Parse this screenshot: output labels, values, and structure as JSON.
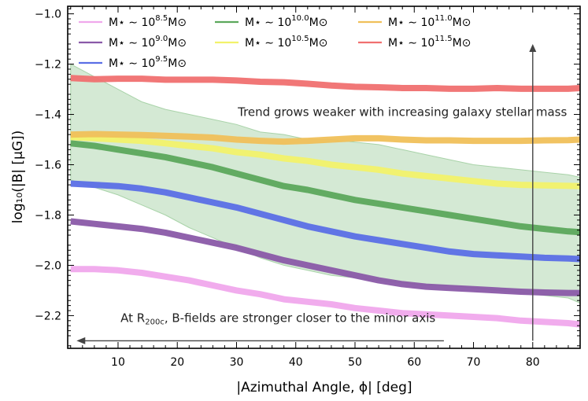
{
  "chart_data": {
    "type": "line",
    "xlabel": "|Azimuthal Angle, ϕ| [deg]",
    "ylabel": "log₁₀(|B| [μG])",
    "xlim": [
      1.5,
      88
    ],
    "ylim": [
      -2.33,
      -0.97
    ],
    "xticks": [
      10,
      20,
      30,
      40,
      50,
      60,
      70,
      80
    ],
    "xtick_labels": [
      "10",
      "20",
      "30",
      "40",
      "50",
      "60",
      "70",
      "80"
    ],
    "yticks": [
      -2.2,
      -2.0,
      -1.8,
      -1.6,
      -1.4,
      -1.2,
      -1.0
    ],
    "ytick_labels": [
      "−2.2",
      "−2.0",
      "−1.8",
      "−1.6",
      "−1.4",
      "−1.2",
      "−1.0"
    ],
    "x": [
      2,
      6,
      10,
      14,
      18,
      22,
      26,
      30,
      34,
      38,
      42,
      46,
      50,
      54,
      58,
      62,
      66,
      70,
      74,
      78,
      82,
      86,
      88
    ],
    "series": [
      {
        "name": "M⋆ ∼ 10^8.5 M⊙",
        "base": "M⋆ ∼ 10",
        "exp": "8.5",
        "tail": "M⊙",
        "color": "#f0a8ec",
        "values": [
          -2.015,
          -2.015,
          -2.02,
          -2.03,
          -2.045,
          -2.06,
          -2.08,
          -2.1,
          -2.115,
          -2.135,
          -2.145,
          -2.155,
          -2.17,
          -2.18,
          -2.19,
          -2.195,
          -2.2,
          -2.205,
          -2.21,
          -2.22,
          -2.225,
          -2.23,
          -2.235
        ]
      },
      {
        "name": "M⋆ ∼ 10^9.0 M⊙",
        "base": "M⋆ ∼ 10",
        "exp": "9.0",
        "tail": "M⊙",
        "color": "#8a5aa8",
        "values": [
          -1.825,
          -1.835,
          -1.845,
          -1.855,
          -1.87,
          -1.89,
          -1.91,
          -1.93,
          -1.955,
          -1.98,
          -2.0,
          -2.02,
          -2.04,
          -2.06,
          -2.075,
          -2.085,
          -2.09,
          -2.095,
          -2.1,
          -2.105,
          -2.108,
          -2.11,
          -2.11
        ]
      },
      {
        "name": "M⋆ ∼ 10^9.5 M⊙",
        "base": "M⋆ ∼ 10",
        "exp": "9.5",
        "tail": "M⊙",
        "color": "#5b6fe6",
        "values": [
          -1.675,
          -1.68,
          -1.685,
          -1.695,
          -1.71,
          -1.73,
          -1.75,
          -1.77,
          -1.795,
          -1.82,
          -1.845,
          -1.865,
          -1.885,
          -1.9,
          -1.915,
          -1.93,
          -1.945,
          -1.955,
          -1.96,
          -1.965,
          -1.97,
          -1.973,
          -1.975
        ]
      },
      {
        "name": "M⋆ ∼ 10^10.0 M⊙",
        "base": "M⋆ ∼ 10",
        "exp": "10.0",
        "tail": "M⊙",
        "color": "#5ca85c",
        "values": [
          -1.515,
          -1.525,
          -1.54,
          -1.555,
          -1.57,
          -1.59,
          -1.61,
          -1.635,
          -1.66,
          -1.685,
          -1.7,
          -1.72,
          -1.74,
          -1.755,
          -1.77,
          -1.785,
          -1.8,
          -1.815,
          -1.83,
          -1.845,
          -1.855,
          -1.865,
          -1.868
        ]
      },
      {
        "name": "M⋆ ∼ 10^10.5 M⊙",
        "base": "M⋆ ∼ 10",
        "exp": "10.5",
        "tail": "M⊙",
        "color": "#f2f26a",
        "values": [
          -1.49,
          -1.495,
          -1.5,
          -1.505,
          -1.515,
          -1.525,
          -1.535,
          -1.55,
          -1.56,
          -1.575,
          -1.585,
          -1.6,
          -1.61,
          -1.62,
          -1.635,
          -1.645,
          -1.655,
          -1.665,
          -1.675,
          -1.68,
          -1.682,
          -1.684,
          -1.685
        ]
      },
      {
        "name": "M⋆ ∼ 10^11.0 M⊙",
        "base": "M⋆ ∼ 10",
        "exp": "11.0",
        "tail": "M⊙",
        "color": "#f0c05a",
        "values": [
          -1.48,
          -1.478,
          -1.48,
          -1.482,
          -1.485,
          -1.488,
          -1.492,
          -1.5,
          -1.505,
          -1.508,
          -1.505,
          -1.5,
          -1.495,
          -1.495,
          -1.5,
          -1.503,
          -1.503,
          -1.505,
          -1.505,
          -1.505,
          -1.503,
          -1.502,
          -1.5
        ]
      },
      {
        "name": "M⋆ ∼ 10^11.5 M⊙",
        "base": "M⋆ ∼ 10",
        "exp": "11.5",
        "tail": "M⊙",
        "color": "#f07070",
        "values": [
          -1.255,
          -1.26,
          -1.258,
          -1.258,
          -1.262,
          -1.262,
          -1.262,
          -1.265,
          -1.27,
          -1.272,
          -1.278,
          -1.285,
          -1.29,
          -1.292,
          -1.295,
          -1.295,
          -1.298,
          -1.298,
          -1.295,
          -1.298,
          -1.298,
          -1.298,
          -1.295
        ]
      }
    ],
    "band": {
      "color": "#a9d3a9",
      "upper": [
        -1.2,
        -1.25,
        -1.3,
        -1.35,
        -1.38,
        -1.4,
        -1.42,
        -1.44,
        -1.47,
        -1.48,
        -1.5,
        -1.5,
        -1.51,
        -1.52,
        -1.54,
        -1.56,
        -1.58,
        -1.6,
        -1.61,
        -1.62,
        -1.63,
        -1.64,
        -1.65
      ],
      "lower": [
        -1.66,
        -1.69,
        -1.72,
        -1.76,
        -1.8,
        -1.85,
        -1.89,
        -1.93,
        -1.97,
        -2.0,
        -2.02,
        -2.04,
        -2.05,
        -2.06,
        -2.07,
        -2.08,
        -2.08,
        -2.09,
        -2.1,
        -2.11,
        -2.12,
        -2.13,
        -2.15
      ]
    },
    "annotations": [
      {
        "text": "Trend grows weaker with increasing galaxy stellar mass",
        "x": 58,
        "y": -1.39
      },
      {
        "text_pre": "At R",
        "text_sub": "200c",
        "text_post": ", B-fields are stronger closer to the minor axis",
        "x": 37,
        "y": -2.21
      }
    ],
    "arrows": [
      {
        "from": [
          80,
          -2.3
        ],
        "to": [
          80,
          -1.12
        ],
        "direction": "up"
      },
      {
        "from": [
          65,
          -2.3
        ],
        "to": [
          3,
          -2.3
        ],
        "direction": "left"
      }
    ],
    "legend": {
      "placement": "top-left",
      "columns": 3
    }
  }
}
